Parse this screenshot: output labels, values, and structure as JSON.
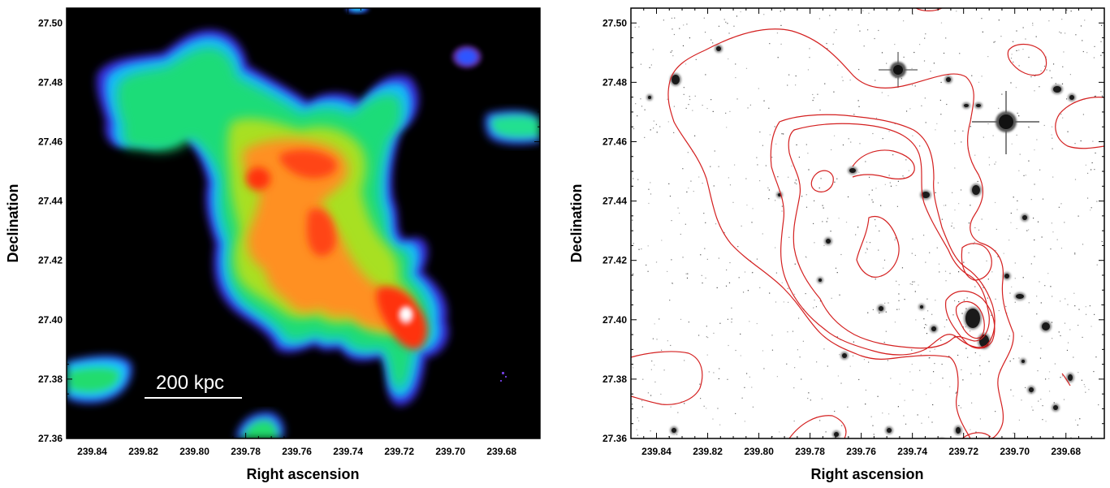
{
  "chart_data": [
    {
      "type": "heatmap",
      "panel": "left",
      "title": "",
      "xlabel": "Right ascension",
      "ylabel": "Declination",
      "xlim": [
        239.85,
        239.665
      ],
      "ylim": [
        27.36,
        27.505
      ],
      "x_ticks": [
        "239.84",
        "239.82",
        "239.80",
        "239.78",
        "239.76",
        "239.74",
        "239.72",
        "239.70",
        "239.68"
      ],
      "y_ticks": [
        "27.36",
        "27.38",
        "27.40",
        "27.42",
        "27.44",
        "27.46",
        "27.48",
        "27.50"
      ],
      "colormap": [
        "#000000",
        "#4a1070",
        "#2f55ff",
        "#18d0ff",
        "#19e28a",
        "#3cdc32",
        "#bfe020",
        "#ff9a20",
        "#ff3010",
        "#ffffff"
      ],
      "peak": {
        "x": 239.718,
        "y": 27.4
      },
      "scale_bar": {
        "label": "200 kpc"
      }
    },
    {
      "type": "image-contour",
      "panel": "right",
      "title": "",
      "xlabel": "Right ascension",
      "ylabel": "Declination",
      "xlim": [
        239.85,
        239.665
      ],
      "ylim": [
        27.36,
        27.505
      ],
      "x_ticks": [
        "239.84",
        "239.82",
        "239.80",
        "239.78",
        "239.76",
        "239.74",
        "239.72",
        "239.70",
        "239.68"
      ],
      "y_ticks": [
        "27.36",
        "27.38",
        "27.40",
        "27.42",
        "27.44",
        "27.46",
        "27.48",
        "27.50"
      ],
      "contour_color": "#d42020",
      "bright_stars": [
        {
          "x": 239.737,
          "y": 27.485
        },
        {
          "x": 239.7,
          "y": 27.467
        }
      ]
    }
  ]
}
